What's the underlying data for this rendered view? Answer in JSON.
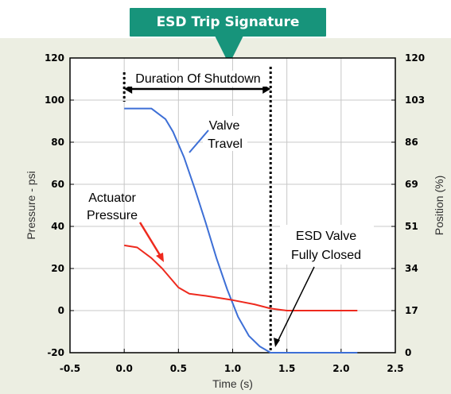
{
  "banner": {
    "title": "ESD Trip Signature"
  },
  "chart_data": {
    "type": "line",
    "xlabel": "Time (s)",
    "ylabel": "Pressure - psi",
    "y2label": "Position (%)",
    "xlim": [
      -0.5,
      2.5
    ],
    "ylim": [
      -20,
      120
    ],
    "x_ticks": [
      "-0.5",
      "0.0",
      "0.5",
      "1.0",
      "1.5",
      "2.0",
      "2.5"
    ],
    "y_ticks": [
      "-20",
      "0",
      "20",
      "40",
      "60",
      "80",
      "100",
      "120"
    ],
    "y2_ticks": [
      "0",
      "17",
      "34",
      "51",
      "69",
      "86",
      "103",
      "120"
    ],
    "grid": true,
    "series": [
      {
        "name": "Valve Travel",
        "color": "#3d6fd6",
        "x": [
          0.0,
          0.25,
          0.38,
          0.45,
          0.55,
          0.65,
          0.75,
          0.85,
          0.95,
          1.05,
          1.15,
          1.25,
          1.35,
          1.5,
          1.8,
          2.15
        ],
        "y": [
          96,
          96,
          91,
          85,
          73,
          58,
          42,
          25,
          10,
          -3,
          -12,
          -17,
          -20,
          -20,
          -20,
          -20
        ]
      },
      {
        "name": "Actuator Pressure",
        "color": "#ee2a1e",
        "x": [
          0.0,
          0.12,
          0.25,
          0.35,
          0.5,
          0.6,
          0.75,
          1.0,
          1.2,
          1.35,
          1.5,
          2.15
        ],
        "y": [
          31,
          30,
          25,
          20,
          11,
          8,
          7,
          5,
          3,
          1,
          0,
          0
        ]
      }
    ],
    "annotations": [
      {
        "id": "valve-travel",
        "lines": [
          "Valve",
          "Travel"
        ]
      },
      {
        "id": "actuator-pressure",
        "lines": [
          "Actuator",
          "Pressure"
        ]
      },
      {
        "id": "esd-valve",
        "lines": [
          "ESD Valve",
          "Fully Closed"
        ]
      },
      {
        "id": "duration",
        "lines": [
          "Duration Of Shutdown"
        ]
      }
    ],
    "shutdown_marker": {
      "start_x": 0.0,
      "end_x": 1.35
    }
  }
}
